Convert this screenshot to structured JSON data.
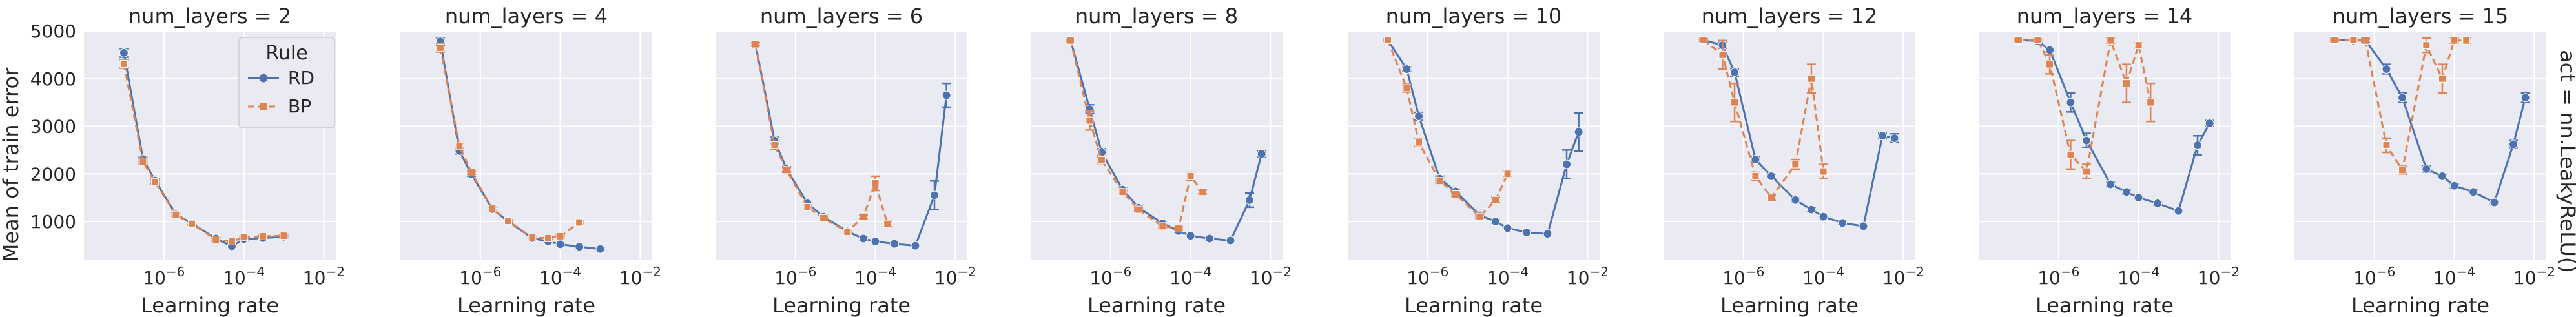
{
  "figure": {
    "ylabel": "Mean of train error",
    "xlabel": "Learning rate",
    "row_label": "act = nn.LeakyReLU()"
  },
  "legend": {
    "title": "Rule",
    "entries": [
      {
        "name": "RD",
        "color": "#4c72b0",
        "marker": "circle",
        "dash": "solid"
      },
      {
        "name": "BP",
        "color": "#dd8452",
        "marker": "square",
        "dash": "dashed"
      }
    ]
  },
  "colors": {
    "panel_background": "#eaeaf2",
    "grid": "#ffffff",
    "RD": "#4c72b0",
    "BP": "#dd8452"
  },
  "chart_data": {
    "type": "line",
    "xscale": "log",
    "xlim": [
      1e-08,
      0.02
    ],
    "ylim": [
      200,
      5000
    ],
    "xticks": [
      {
        "value": 1e-06,
        "label": "10",
        "exp": "−6"
      },
      {
        "value": 0.0001,
        "label": "10",
        "exp": "−4"
      },
      {
        "value": 0.01,
        "label": "10",
        "exp": "−2"
      }
    ],
    "yticks": [
      1000,
      2000,
      3000,
      4000,
      5000
    ],
    "grid": true,
    "legend_position": "top-right of first panel",
    "panels": [
      {
        "title": "num_layers = 2",
        "series": [
          {
            "name": "RD",
            "points": [
              [
                1e-07,
                4540,
                90
              ],
              [
                3e-07,
                2310,
                50
              ],
              [
                6e-07,
                1860,
                40
              ],
              [
                2e-06,
                1150,
                30
              ],
              [
                5e-06,
                960,
                25
              ],
              [
                2e-05,
                640,
                25
              ],
              [
                5e-05,
                480,
                20
              ],
              [
                0.0001,
                630,
                20
              ],
              [
                0.0003,
                650,
                20
              ],
              [
                0.001,
                680,
                20
              ]
            ]
          },
          {
            "name": "BP",
            "points": [
              [
                1e-07,
                4310,
                90
              ],
              [
                3e-07,
                2260,
                50
              ],
              [
                6e-07,
                1830,
                40
              ],
              [
                2e-06,
                1140,
                30
              ],
              [
                5e-06,
                950,
                25
              ],
              [
                2e-05,
                620,
                25
              ],
              [
                5e-05,
                580,
                20
              ],
              [
                0.0001,
                670,
                20
              ],
              [
                0.0003,
                690,
                20
              ],
              [
                0.001,
                700,
                20
              ]
            ]
          }
        ]
      },
      {
        "title": "num_layers = 4",
        "series": [
          {
            "name": "RD",
            "points": [
              [
                1e-07,
                4780,
                80
              ],
              [
                3e-07,
                2480,
                60
              ],
              [
                6e-07,
                1990,
                40
              ],
              [
                2e-06,
                1260,
                30
              ],
              [
                5e-06,
                1000,
                25
              ],
              [
                2e-05,
                650,
                25
              ],
              [
                5e-05,
                580,
                20
              ],
              [
                0.0001,
                520,
                20
              ],
              [
                0.0003,
                470,
                15
              ],
              [
                0.001,
                420,
                15
              ]
            ]
          },
          {
            "name": "BP",
            "points": [
              [
                1e-07,
                4650,
                90
              ],
              [
                3e-07,
                2580,
                60
              ],
              [
                6e-07,
                2030,
                40
              ],
              [
                2e-06,
                1270,
                30
              ],
              [
                5e-06,
                1010,
                25
              ],
              [
                2e-05,
                660,
                25
              ],
              [
                5e-05,
                650,
                20
              ],
              [
                0.0001,
                690,
                25
              ],
              [
                0.0003,
                980,
                25
              ]
            ]
          }
        ]
      },
      {
        "title": "num_layers = 6",
        "series": [
          {
            "name": "RD",
            "points": [
              [
                1e-07,
                4720,
                30
              ],
              [
                3e-07,
                2700,
                70
              ],
              [
                6e-07,
                2100,
                50
              ],
              [
                2e-06,
                1380,
                40
              ],
              [
                5e-06,
                1100,
                30
              ],
              [
                2e-05,
                790,
                25
              ],
              [
                5e-05,
                640,
                20
              ],
              [
                0.0001,
                580,
                20
              ],
              [
                0.0003,
                530,
                20
              ],
              [
                0.001,
                490,
                20
              ],
              [
                0.003,
                1550,
                300
              ],
              [
                0.006,
                3650,
                250
              ]
            ]
          },
          {
            "name": "BP",
            "points": [
              [
                1e-07,
                4720,
                30
              ],
              [
                3e-07,
                2600,
                80
              ],
              [
                6e-07,
                2080,
                50
              ],
              [
                2e-06,
                1300,
                40
              ],
              [
                5e-06,
                1070,
                30
              ],
              [
                2e-05,
                780,
                25
              ],
              [
                5e-05,
                1100,
                40
              ],
              [
                0.0001,
                1800,
                150
              ],
              [
                0.0002,
                950,
                60
              ]
            ]
          }
        ]
      },
      {
        "title": "num_layers = 8",
        "series": [
          {
            "name": "RD",
            "points": [
              [
                1e-07,
                4800,
                20
              ],
              [
                3e-07,
                3360,
                90
              ],
              [
                6e-07,
                2450,
                70
              ],
              [
                2e-06,
                1670,
                40
              ],
              [
                5e-06,
                1290,
                35
              ],
              [
                2e-05,
                960,
                30
              ],
              [
                5e-05,
                800,
                25
              ],
              [
                0.0001,
                700,
                25
              ],
              [
                0.0003,
                640,
                20
              ],
              [
                0.001,
                600,
                20
              ],
              [
                0.003,
                1450,
                150
              ],
              [
                0.006,
                2420,
                60
              ]
            ]
          },
          {
            "name": "BP",
            "points": [
              [
                1e-07,
                4800,
                20
              ],
              [
                3e-07,
                3120,
                200
              ],
              [
                6e-07,
                2290,
                70
              ],
              [
                2e-06,
                1620,
                40
              ],
              [
                5e-06,
                1250,
                35
              ],
              [
                2e-05,
                900,
                30
              ],
              [
                5e-05,
                850,
                30
              ],
              [
                0.0001,
                1950,
                80
              ],
              [
                0.0002,
                1620,
                40
              ]
            ]
          }
        ]
      },
      {
        "title": "num_layers = 10",
        "series": [
          {
            "name": "RD",
            "points": [
              [
                1e-07,
                4810,
                20
              ],
              [
                3e-07,
                4200,
                40
              ],
              [
                6e-07,
                3210,
                80
              ],
              [
                2e-06,
                1900,
                50
              ],
              [
                5e-06,
                1630,
                40
              ],
              [
                2e-05,
                1130,
                30
              ],
              [
                5e-05,
                1000,
                30
              ],
              [
                0.0001,
                860,
                25
              ],
              [
                0.0003,
                770,
                25
              ],
              [
                0.001,
                740,
                25
              ],
              [
                0.003,
                2200,
                300
              ],
              [
                0.006,
                2880,
                400
              ]
            ]
          },
          {
            "name": "BP",
            "points": [
              [
                1e-07,
                4810,
                20
              ],
              [
                3e-07,
                3800,
                80
              ],
              [
                6e-07,
                2660,
                80
              ],
              [
                2e-06,
                1850,
                50
              ],
              [
                5e-06,
                1570,
                40
              ],
              [
                2e-05,
                1100,
                30
              ],
              [
                5e-05,
                1450,
                60
              ],
              [
                0.0001,
                2000,
                60
              ]
            ]
          }
        ]
      },
      {
        "title": "num_layers = 12",
        "series": [
          {
            "name": "RD",
            "points": [
              [
                1e-07,
                4810,
                20
              ],
              [
                3e-07,
                4700,
                60
              ],
              [
                6e-07,
                4130,
                80
              ],
              [
                2e-06,
                2300,
                60
              ],
              [
                5e-06,
                1950,
                40
              ],
              [
                2e-05,
                1450,
                40
              ],
              [
                5e-05,
                1250,
                30
              ],
              [
                0.0001,
                1100,
                30
              ],
              [
                0.0003,
                970,
                25
              ],
              [
                0.001,
                900,
                25
              ],
              [
                0.003,
                2800,
                60
              ],
              [
                0.006,
                2750,
                90
              ]
            ]
          },
          {
            "name": "BP",
            "points": [
              [
                1e-07,
                4810,
                20
              ],
              [
                3e-07,
                4500,
                300
              ],
              [
                6e-07,
                3500,
                400
              ],
              [
                2e-06,
                1950,
                80
              ],
              [
                5e-06,
                1500,
                60
              ],
              [
                2e-05,
                2200,
                100
              ],
              [
                5e-05,
                4000,
                300
              ],
              [
                0.0001,
                2050,
                150
              ]
            ]
          }
        ]
      },
      {
        "title": "num_layers = 14",
        "series": [
          {
            "name": "RD",
            "points": [
              [
                1e-07,
                4810,
                20
              ],
              [
                3e-07,
                4790,
                30
              ],
              [
                6e-07,
                4600,
                40
              ],
              [
                2e-06,
                3500,
                200
              ],
              [
                5e-06,
                2700,
                150
              ],
              [
                2e-05,
                1780,
                40
              ],
              [
                5e-05,
                1620,
                40
              ],
              [
                0.0001,
                1500,
                30
              ],
              [
                0.0003,
                1380,
                30
              ],
              [
                0.001,
                1220,
                25
              ],
              [
                0.003,
                2600,
                200
              ],
              [
                0.006,
                3060,
                60
              ]
            ]
          },
          {
            "name": "BP",
            "points": [
              [
                1e-07,
                4810,
                20
              ],
              [
                3e-07,
                4810,
                20
              ],
              [
                6e-07,
                4300,
                200
              ],
              [
                2e-06,
                2400,
                300
              ],
              [
                5e-06,
                2050,
                150
              ],
              [
                2e-05,
                4800,
                60
              ],
              [
                5e-05,
                3900,
                400
              ],
              [
                0.0001,
                4700,
                60
              ],
              [
                0.0002,
                3500,
                400
              ]
            ]
          }
        ]
      },
      {
        "title": "num_layers = 15",
        "series": [
          {
            "name": "RD",
            "points": [
              [
                1e-07,
                4810,
                20
              ],
              [
                3e-07,
                4800,
                30
              ],
              [
                6e-07,
                4800,
                40
              ],
              [
                2e-06,
                4200,
                100
              ],
              [
                5e-06,
                3600,
                100
              ],
              [
                2e-05,
                2100,
                60
              ],
              [
                5e-05,
                1950,
                40
              ],
              [
                0.0001,
                1750,
                40
              ],
              [
                0.0003,
                1620,
                35
              ],
              [
                0.001,
                1400,
                30
              ],
              [
                0.003,
                2620,
                80
              ],
              [
                0.006,
                3600,
                100
              ]
            ]
          },
          {
            "name": "BP",
            "points": [
              [
                1e-07,
                4810,
                20
              ],
              [
                3e-07,
                4810,
                20
              ],
              [
                6e-07,
                4800,
                30
              ],
              [
                2e-06,
                2600,
                150
              ],
              [
                5e-06,
                2080,
                80
              ],
              [
                2e-05,
                4700,
                150
              ],
              [
                5e-05,
                4000,
                300
              ],
              [
                0.0001,
                4800,
                60
              ],
              [
                0.0002,
                4800,
                60
              ]
            ]
          }
        ]
      }
    ]
  }
}
